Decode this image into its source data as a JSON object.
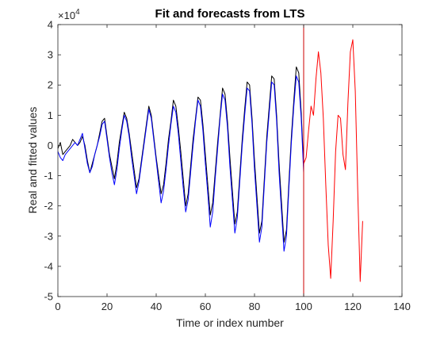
{
  "chart_data": {
    "type": "line",
    "title": "Fit and forecasts from LTS",
    "xlabel": "Time or index number",
    "ylabel": "Real and fitted values",
    "xlim": [
      0,
      140
    ],
    "ylim": [
      -5,
      4
    ],
    "y_exponent_label": "×10",
    "y_exponent_power": "4",
    "xticks": [
      0,
      20,
      40,
      60,
      80,
      100,
      120,
      140
    ],
    "yticks": [
      -5,
      -4,
      -3,
      -2,
      -1,
      0,
      1,
      2,
      3,
      4
    ],
    "grid": false,
    "colors": {
      "real": "#000000",
      "fitted": "#0000ff",
      "forecast": "#ff0000",
      "split": "#cc0000"
    },
    "split_x": 100,
    "series": [
      {
        "key": "real",
        "x": [
          0,
          1,
          2,
          3,
          4,
          5,
          6,
          7,
          8,
          9,
          10,
          11,
          12,
          13,
          14,
          15,
          16,
          17,
          18,
          19,
          20,
          21,
          22,
          23,
          24,
          25,
          26,
          27,
          28,
          29,
          30,
          31,
          32,
          33,
          34,
          35,
          36,
          37,
          38,
          39,
          40,
          41,
          42,
          43,
          44,
          45,
          46,
          47,
          48,
          49,
          50,
          51,
          52,
          53,
          54,
          55,
          56,
          57,
          58,
          59,
          60,
          61,
          62,
          63,
          64,
          65,
          66,
          67,
          68,
          69,
          70,
          71,
          72,
          73,
          74,
          75,
          76,
          77,
          78,
          79,
          80,
          81,
          82,
          83,
          84,
          85,
          86,
          87,
          88,
          89,
          90,
          91,
          92,
          93,
          94,
          95,
          96,
          97,
          98,
          99,
          100
        ],
        "y": [
          -0.1,
          0.1,
          -0.3,
          -0.2,
          -0.1,
          0.0,
          0.2,
          0.1,
          0.0,
          0.1,
          0.3,
          0.0,
          -0.5,
          -0.9,
          -0.6,
          -0.3,
          0.0,
          0.4,
          0.8,
          0.9,
          0.3,
          -0.3,
          -0.7,
          -1.1,
          -0.6,
          0.1,
          0.6,
          1.1,
          0.9,
          0.4,
          -0.2,
          -0.8,
          -1.4,
          -1.1,
          -0.5,
          0.1,
          0.7,
          1.3,
          1.0,
          0.3,
          -0.4,
          -1.0,
          -1.6,
          -1.3,
          -0.6,
          0.2,
          0.8,
          1.5,
          1.3,
          0.6,
          -0.2,
          -1.1,
          -2.0,
          -1.6,
          -0.7,
          0.2,
          0.9,
          1.6,
          1.5,
          0.7,
          -0.3,
          -1.3,
          -2.3,
          -1.9,
          -0.9,
          0.1,
          1.0,
          1.9,
          1.7,
          0.8,
          -0.4,
          -1.5,
          -2.6,
          -2.2,
          -1.0,
          0.2,
          1.2,
          2.1,
          2.0,
          0.9,
          -0.5,
          -1.7,
          -2.9,
          -2.5,
          -1.1,
          0.3,
          1.3,
          2.3,
          2.2,
          1.0,
          -0.6,
          -1.9,
          -3.2,
          -2.8,
          -1.2,
          0.3,
          1.5,
          2.6,
          2.4,
          1.1,
          -0.7
        ],
        "name": ""
      },
      {
        "key": "fitted",
        "x": [
          0,
          1,
          2,
          3,
          4,
          5,
          6,
          7,
          8,
          9,
          10,
          11,
          12,
          13,
          14,
          15,
          16,
          17,
          18,
          19,
          20,
          21,
          22,
          23,
          24,
          25,
          26,
          27,
          28,
          29,
          30,
          31,
          32,
          33,
          34,
          35,
          36,
          37,
          38,
          39,
          40,
          41,
          42,
          43,
          44,
          45,
          46,
          47,
          48,
          49,
          50,
          51,
          52,
          53,
          54,
          55,
          56,
          57,
          58,
          59,
          60,
          61,
          62,
          63,
          64,
          65,
          66,
          67,
          68,
          69,
          70,
          71,
          72,
          73,
          74,
          75,
          76,
          77,
          78,
          79,
          80,
          81,
          82,
          83,
          84,
          85,
          86,
          87,
          88,
          89,
          90,
          91,
          92,
          93,
          94,
          95,
          96,
          97,
          98,
          99,
          100
        ],
        "y": [
          -0.2,
          -0.4,
          -0.5,
          -0.3,
          -0.2,
          -0.1,
          0.0,
          0.1,
          0.0,
          0.2,
          0.4,
          -0.1,
          -0.6,
          -0.9,
          -0.7,
          -0.3,
          0.0,
          0.3,
          0.7,
          0.8,
          0.2,
          -0.4,
          -0.9,
          -1.3,
          -0.8,
          -0.1,
          0.5,
          1.0,
          0.8,
          0.3,
          -0.4,
          -1.0,
          -1.6,
          -1.2,
          -0.6,
          0.0,
          0.6,
          1.2,
          0.9,
          0.2,
          -0.5,
          -1.2,
          -1.9,
          -1.5,
          -0.8,
          0.0,
          0.7,
          1.3,
          1.1,
          0.4,
          -0.5,
          -1.4,
          -2.2,
          -1.8,
          -0.9,
          0.0,
          0.8,
          1.5,
          1.3,
          0.5,
          -0.6,
          -1.6,
          -2.7,
          -2.2,
          -1.1,
          -0.1,
          0.9,
          1.7,
          1.5,
          0.6,
          -0.7,
          -1.8,
          -2.9,
          -2.4,
          -1.2,
          0.0,
          1.0,
          1.9,
          1.8,
          0.7,
          -0.8,
          -2.0,
          -3.2,
          -2.7,
          -1.3,
          0.1,
          1.1,
          2.1,
          2.0,
          0.8,
          -0.9,
          -2.2,
          -3.5,
          -3.0,
          -1.4,
          0.1,
          1.3,
          2.3,
          2.1,
          0.9,
          -0.9
        ],
        "name": ""
      },
      {
        "key": "forecast",
        "x": [
          100,
          101,
          102,
          103,
          104,
          105,
          106,
          107,
          108,
          109,
          110,
          111,
          112,
          113,
          114,
          115,
          116,
          117,
          118,
          119,
          120,
          121,
          122,
          123,
          124
        ],
        "y": [
          -0.6,
          -0.4,
          0.5,
          1.3,
          1.0,
          2.2,
          3.1,
          2.4,
          0.9,
          -1.3,
          -3.3,
          -4.4,
          -2.5,
          -0.2,
          1.0,
          0.9,
          -0.3,
          -0.8,
          1.4,
          3.1,
          3.5,
          1.8,
          -1.5,
          -4.5,
          -2.5
        ],
        "name": ""
      }
    ]
  }
}
